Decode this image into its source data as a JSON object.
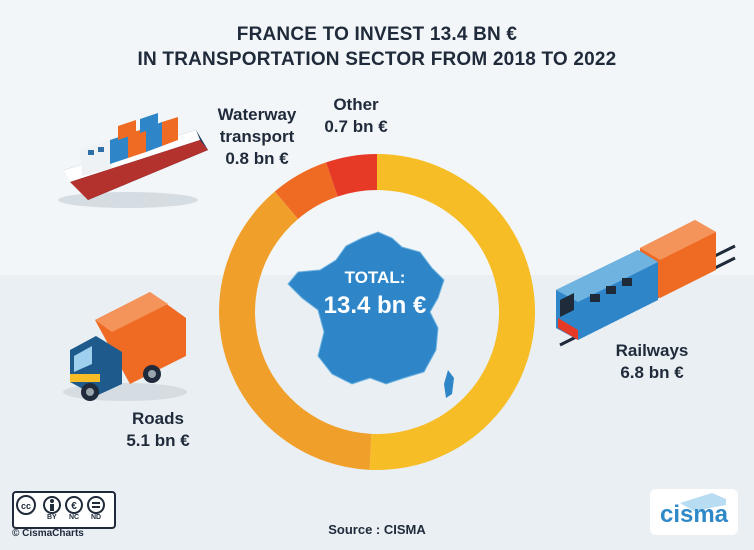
{
  "chart_data": {
    "type": "donut",
    "title_lines": [
      "FRANCE TO INVEST 13.4 BN €",
      "IN TRANSPORTATION SECTOR FROM 2018 TO 2022"
    ],
    "center_label": "TOTAL:",
    "center_value": "13.4 bn €",
    "slices": [
      {
        "name_lines": [
          "Railways"
        ],
        "value": 6.8,
        "value_label": "6.8 bn €",
        "color": "#f6bd27"
      },
      {
        "name_lines": [
          "Roads"
        ],
        "value": 5.1,
        "value_label": "5.1 bn €",
        "color": "#f0a02a"
      },
      {
        "name_lines": [
          "Waterway",
          "transport"
        ],
        "value": 0.8,
        "value_label": "0.8 bn €",
        "color": "#ef6b24"
      },
      {
        "name_lines": [
          "Other"
        ],
        "value": 0.7,
        "value_label": "0.7 bn €",
        "color": "#e63a27"
      }
    ]
  },
  "footer": {
    "source": "Source : CISMA",
    "copyright": "© CismaCharts",
    "license_labels": [
      "BY",
      "NC",
      "ND"
    ],
    "logo": "cisma"
  },
  "icons": [
    "cargo-ship-icon",
    "truck-icon",
    "train-icon",
    "france-map-icon",
    "cc-license-icon",
    "cisma-logo"
  ]
}
